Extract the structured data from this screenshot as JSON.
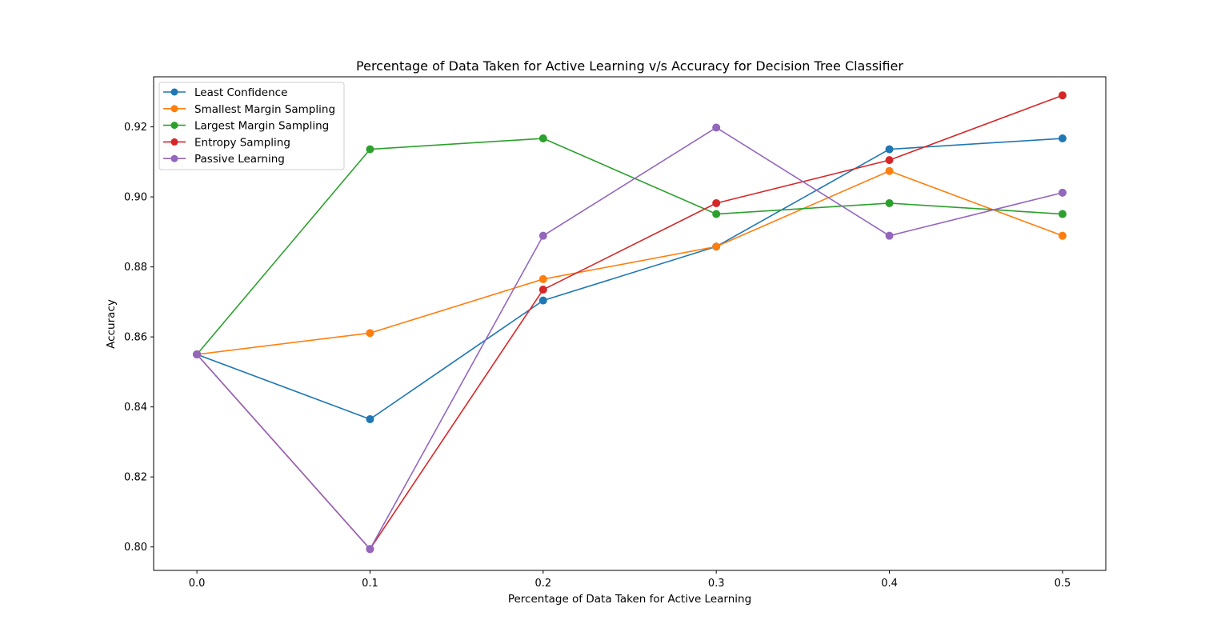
{
  "chart_data": {
    "type": "line",
    "title": "Percentage of Data Taken for Active Learning v/s Accuracy for Decision Tree Classifier",
    "xlabel": "Percentage of Data Taken for Active Learning",
    "ylabel": "Accuracy",
    "x": [
      0.0,
      0.1,
      0.2,
      0.3,
      0.4,
      0.5
    ],
    "xlim": [
      -0.025,
      0.525
    ],
    "ylim": [
      0.7933,
      0.9343
    ],
    "xticks": [
      0.0,
      0.1,
      0.2,
      0.3,
      0.4,
      0.5
    ],
    "xtick_labels": [
      "0.0",
      "0.1",
      "0.2",
      "0.3",
      "0.4",
      "0.5"
    ],
    "yticks": [
      0.8,
      0.82,
      0.84,
      0.86,
      0.88,
      0.9,
      0.92
    ],
    "ytick_labels": [
      "0.80",
      "0.82",
      "0.84",
      "0.86",
      "0.88",
      "0.90",
      "0.92"
    ],
    "grid": false,
    "legend_position": "upper-left",
    "series": [
      {
        "name": "Least Confidence",
        "color": "#1f77b4",
        "marker": "circle",
        "values": [
          0.855,
          0.8365,
          0.8704,
          0.8858,
          0.9136,
          0.9167
        ]
      },
      {
        "name": "Smallest Margin Sampling",
        "color": "#ff7f0e",
        "marker": "circle",
        "values": [
          0.855,
          0.8611,
          0.8765,
          0.8858,
          0.9074,
          0.8889
        ]
      },
      {
        "name": "Largest Margin Sampling",
        "color": "#2ca02c",
        "marker": "circle",
        "values": [
          0.855,
          0.9136,
          0.9167,
          0.8951,
          0.8982,
          0.8951
        ]
      },
      {
        "name": "Entropy Sampling",
        "color": "#d62728",
        "marker": "circle",
        "values": [
          0.855,
          0.7994,
          0.8735,
          0.8982,
          0.9105,
          0.929
        ]
      },
      {
        "name": "Passive Learning",
        "color": "#9467bd",
        "marker": "circle",
        "values": [
          0.855,
          0.7994,
          0.8889,
          0.9198,
          0.8889,
          0.9012
        ]
      }
    ]
  }
}
